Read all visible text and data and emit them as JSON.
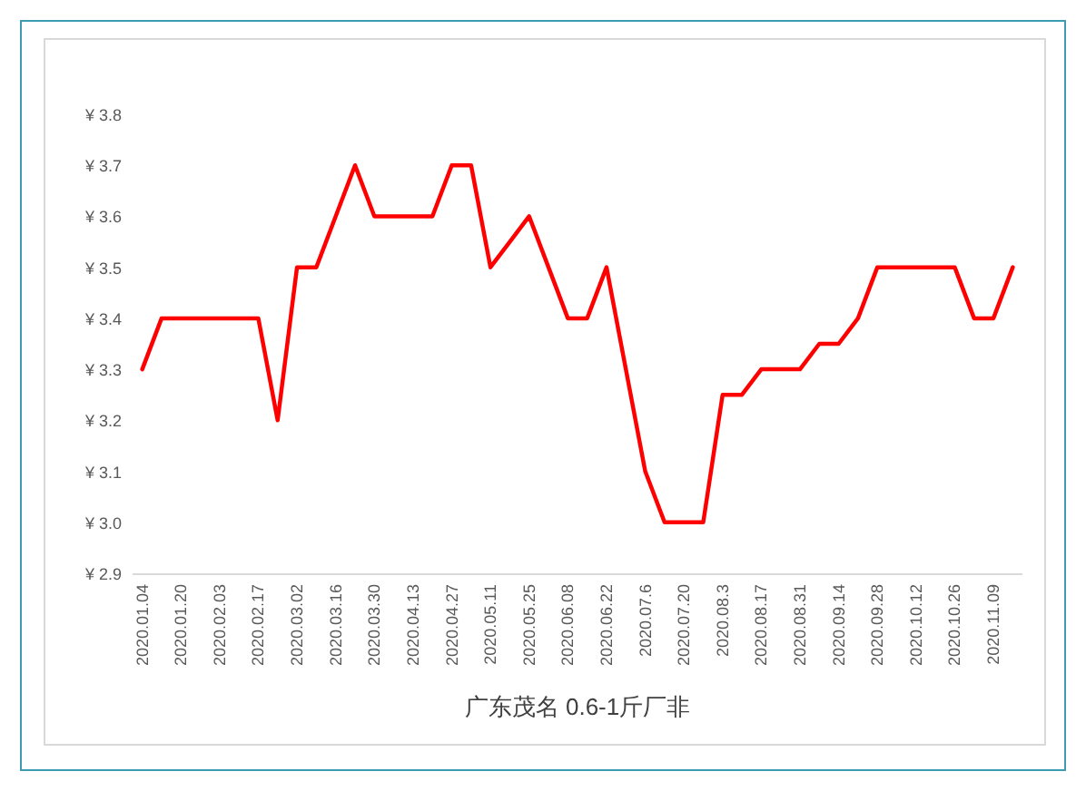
{
  "chart_data": {
    "type": "line",
    "xlabel": "广东茂名 0.6-1斤厂非",
    "categories": [
      "2020.01.04",
      null,
      "2020.01.20",
      null,
      "2020.02.03",
      null,
      "2020.02.17",
      null,
      "2020.03.02",
      null,
      "2020.03.16",
      null,
      "2020.03.30",
      null,
      "2020.04.13",
      null,
      "2020.04.27",
      null,
      "2020.05.11",
      null,
      "2020.05.25",
      null,
      "2020.06.08",
      null,
      "2020.06.22",
      null,
      "2020.07.6",
      null,
      "2020.07.20",
      null,
      "2020.08.3",
      null,
      "2020.08.17",
      null,
      "2020.08.31",
      null,
      "2020.09.14",
      null,
      "2020.09.28",
      null,
      "2020.10.12",
      null,
      "2020.10.26",
      null,
      "2020.11.09",
      null
    ],
    "series": [
      {
        "color": "#ff0000",
        "values": [
          3.3,
          3.4,
          3.4,
          3.4,
          3.4,
          3.4,
          3.4,
          3.2,
          3.5,
          3.5,
          3.6,
          3.7,
          3.6,
          3.6,
          3.6,
          3.6,
          3.7,
          3.7,
          3.5,
          3.55,
          3.6,
          3.5,
          3.4,
          3.4,
          3.5,
          3.3,
          3.1,
          3.0,
          3.0,
          3.0,
          3.25,
          3.25,
          3.3,
          3.3,
          3.3,
          3.35,
          3.35,
          3.4,
          3.5,
          3.5,
          3.5,
          3.5,
          3.5,
          3.4,
          3.4,
          3.5
        ]
      }
    ],
    "ylim": [
      2.9,
      3.8
    ],
    "yticks": [
      {
        "value": 2.9,
        "label": "¥ 2.9"
      },
      {
        "value": 3.0,
        "label": "¥ 3.0"
      },
      {
        "value": 3.1,
        "label": "¥ 3.1"
      },
      {
        "value": 3.2,
        "label": "¥ 3.2"
      },
      {
        "value": 3.3,
        "label": "¥ 3.3"
      },
      {
        "value": 3.4,
        "label": "¥ 3.4"
      },
      {
        "value": 3.5,
        "label": "¥ 3.5"
      },
      {
        "value": 3.6,
        "label": "¥ 3.6"
      },
      {
        "value": 3.7,
        "label": "¥ 3.7"
      },
      {
        "value": 3.8,
        "label": "¥ 3.8"
      }
    ],
    "grid": false,
    "marker": "none",
    "line_style": "solid"
  }
}
